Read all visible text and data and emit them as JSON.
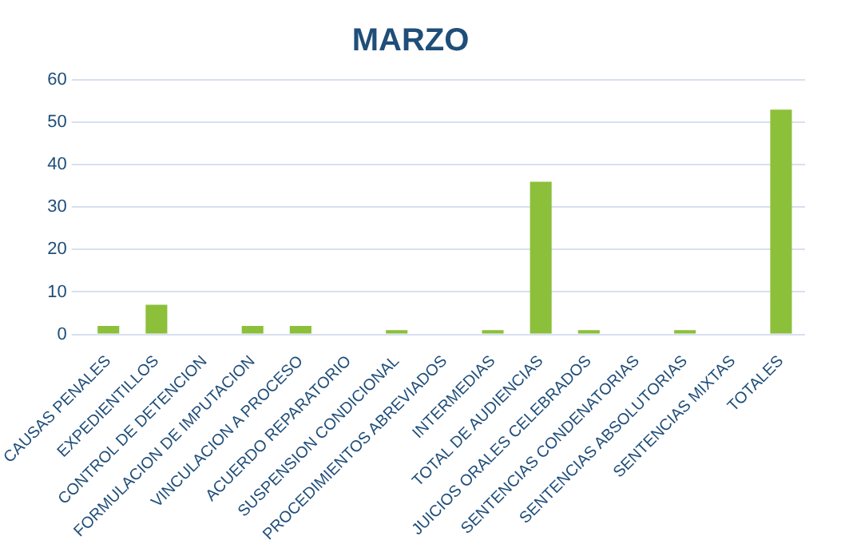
{
  "chart_data": {
    "type": "bar",
    "title": "MARZO",
    "categories": [
      "CAUSAS PENALES",
      "EXPEDIENTILLOS",
      "CONTROL DE DETENCION",
      "FORMULACION DE IMPUTACION",
      "VINCULACION A PROCESO",
      "ACUERDO REPARATORIO",
      "SUSPENSION CONDICIONAL",
      "PROCEDIMIENTOS ABREVIADOS",
      "INTERMEDIAS",
      "TOTAL DE AUDIENCIAS",
      "JUICIOS ORALES CELEBRADOS",
      "SENTENCIAS CONDENATORIAS",
      "SENTENCIAS ABSOLUTORIAS",
      "SENTENCIAS MIXTAS",
      "TOTALES"
    ],
    "values": [
      2,
      7,
      0,
      2,
      2,
      0,
      1,
      0,
      1,
      36,
      1,
      0,
      1,
      0,
      53
    ],
    "color": "#8cbf3a",
    "ylim": [
      0,
      60
    ],
    "yticks": [
      0,
      10,
      20,
      30,
      40,
      50,
      60
    ],
    "grid": "y"
  }
}
